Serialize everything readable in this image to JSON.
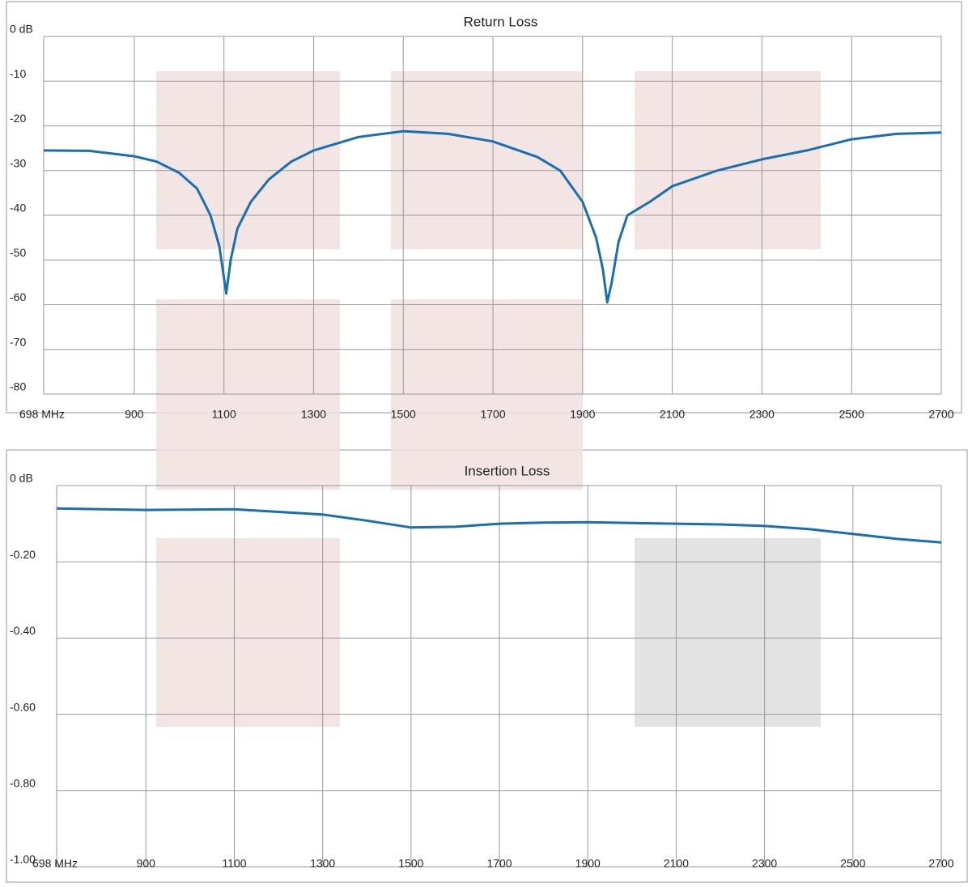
{
  "chart_data": [
    {
      "type": "line",
      "title": "Return Loss",
      "color": "#1a6faf",
      "grid": true,
      "x": [
        698,
        800,
        900,
        950,
        1000,
        1040,
        1070,
        1090,
        1105,
        1115,
        1130,
        1160,
        1200,
        1250,
        1300,
        1400,
        1500,
        1600,
        1700,
        1800,
        1850,
        1900,
        1930,
        1945,
        1955,
        1965,
        1980,
        2000,
        2050,
        2100,
        2200,
        2300,
        2400,
        2500,
        2600,
        2700
      ],
      "values": [
        -25.5,
        -25.6,
        -26.8,
        -28,
        -30.5,
        -34,
        -40,
        -47,
        -57.5,
        -50,
        -43,
        -37,
        -32,
        -28,
        -25.5,
        -22.5,
        -21.2,
        -21.8,
        -23.5,
        -27,
        -30,
        -37,
        -45,
        -52,
        -59.5,
        -55,
        -46,
        -40,
        -37,
        -33.5,
        -30,
        -27.5,
        -25.5,
        -23,
        -21.8,
        -21.5
      ],
      "xlim": [
        698,
        2700
      ],
      "xticks": [
        {
          "value": 698,
          "label": "698 MHz"
        },
        900,
        1100,
        1300,
        1500,
        1700,
        1900,
        2100,
        2300,
        2500,
        2700
      ],
      "ylim": [
        -80,
        0
      ],
      "yticks": [
        {
          "value": 0,
          "label": "0 dB"
        },
        -10,
        -20,
        -30,
        -40,
        -50,
        -60,
        -70,
        -80
      ]
    },
    {
      "type": "line",
      "title": "Insertion Loss",
      "color": "#1a6faf",
      "grid": true,
      "x": [
        698,
        900,
        1100,
        1300,
        1400,
        1500,
        1600,
        1700,
        1800,
        1900,
        2000,
        2100,
        2200,
        2300,
        2400,
        2500,
        2600,
        2700
      ],
      "values": [
        -0.06,
        -0.064,
        -0.062,
        -0.076,
        -0.092,
        -0.11,
        -0.108,
        -0.1,
        -0.097,
        -0.096,
        -0.098,
        -0.1,
        -0.102,
        -0.106,
        -0.114,
        -0.127,
        -0.14,
        -0.149
      ],
      "xlim": [
        698,
        2700
      ],
      "xticks": [
        {
          "value": 698,
          "label": "698 MHz"
        },
        900,
        1100,
        1300,
        1500,
        1700,
        1900,
        2100,
        2300,
        2500,
        2700
      ],
      "ylim": [
        -1,
        0
      ],
      "yticks": [
        {
          "value": 0,
          "label": "0 dB"
        },
        {
          "value": -0.2,
          "label": "-0.20"
        },
        {
          "value": -0.4,
          "label": "-0.40"
        },
        {
          "value": -0.6,
          "label": "-0.60"
        },
        {
          "value": -0.8,
          "label": "-0.80"
        },
        {
          "value": -1,
          "label": "-1.00"
        }
      ]
    }
  ]
}
